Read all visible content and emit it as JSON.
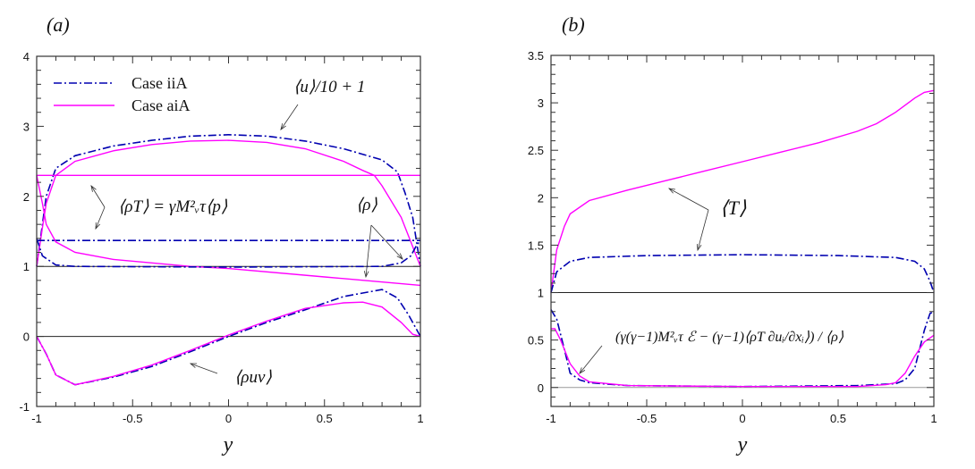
{
  "chart_data": [
    {
      "type": "line",
      "panel_label": "(a)",
      "xlabel": "y",
      "ylabel": "",
      "xlim": [
        -1,
        1
      ],
      "ylim": [
        -1,
        4
      ],
      "xticks": [
        "-1",
        "-0.5",
        "0",
        "0.5",
        "1"
      ],
      "yticks": [
        "-1",
        "0",
        "1",
        "2",
        "3",
        "4"
      ],
      "legend": {
        "placement": "top-left",
        "entries": [
          {
            "name": "Case iiA",
            "color": "#0000b0",
            "style": "dashdot"
          },
          {
            "name": "Case aiA",
            "color": "#ff00ff",
            "style": "solid"
          }
        ]
      },
      "annotations": [
        "⟨u⟩/10 + 1",
        "⟨ρT⟩ = γM²ᵥτ⟨p⟩",
        "⟨ρ⟩",
        "⟨ρuv⟩"
      ],
      "reference_lines": [
        1,
        0
      ],
      "series": [
        {
          "name": "⟨u⟩/10+1 Case iiA",
          "case": "iiA",
          "x": [
            -1,
            -0.97,
            -0.95,
            -0.9,
            -0.8,
            -0.6,
            -0.4,
            -0.2,
            0,
            0.2,
            0.4,
            0.6,
            0.8,
            0.88,
            0.92,
            0.96,
            1
          ],
          "y": [
            1,
            1.6,
            2.0,
            2.4,
            2.58,
            2.72,
            2.8,
            2.86,
            2.88,
            2.86,
            2.79,
            2.68,
            2.52,
            2.35,
            2.05,
            1.7,
            1.0
          ]
        },
        {
          "name": "⟨u⟩/10+1 Case aiA",
          "case": "aiA",
          "x": [
            -1,
            -0.97,
            -0.95,
            -0.9,
            -0.8,
            -0.6,
            -0.4,
            -0.2,
            0,
            0.2,
            0.4,
            0.6,
            0.7,
            0.76,
            0.8,
            0.9,
            0.95,
            1
          ],
          "y": [
            1,
            1.55,
            1.9,
            2.3,
            2.5,
            2.65,
            2.74,
            2.79,
            2.8,
            2.77,
            2.68,
            2.5,
            2.37,
            2.3,
            2.15,
            1.7,
            1.35,
            1.0
          ]
        },
        {
          "name": "⟨ρT⟩ Case aiA",
          "case": "aiA",
          "x": [
            -1,
            1
          ],
          "y": [
            2.3,
            2.3
          ]
        },
        {
          "name": "⟨ρT⟩ Case iiA",
          "case": "iiA",
          "x": [
            -1,
            1
          ],
          "y": [
            1.37,
            1.37
          ]
        },
        {
          "name": "⟨ρ⟩ Case aiA",
          "case": "aiA",
          "x": [
            -1,
            -0.97,
            -0.95,
            -0.9,
            -0.8,
            -0.6,
            -0.2,
            0,
            0.5,
            1
          ],
          "y": [
            2.3,
            1.9,
            1.6,
            1.35,
            1.2,
            1.1,
            1.0,
            0.97,
            0.85,
            0.73
          ]
        },
        {
          "name": "⟨ρ⟩ Case iiA",
          "case": "iiA",
          "x": [
            -1,
            -0.97,
            -0.9,
            -0.8,
            0,
            0.8,
            0.9,
            0.95,
            0.98,
            1
          ],
          "y": [
            1.4,
            1.15,
            1.02,
            1.0,
            0.99,
            1.0,
            1.05,
            1.15,
            1.3,
            1.37
          ]
        },
        {
          "name": "⟨ρuv⟩ Case iiA",
          "case": "iiA",
          "x": [
            -1,
            -0.95,
            -0.9,
            -0.8,
            -0.6,
            -0.4,
            -0.2,
            0,
            0.2,
            0.4,
            0.6,
            0.8,
            0.88,
            0.94,
            1
          ],
          "y": [
            0,
            -0.25,
            -0.55,
            -0.69,
            -0.58,
            -0.43,
            -0.22,
            0,
            0.2,
            0.38,
            0.57,
            0.67,
            0.55,
            0.3,
            0
          ]
        },
        {
          "name": "⟨ρuv⟩ Case aiA",
          "case": "aiA",
          "x": [
            -1,
            -0.95,
            -0.9,
            -0.8,
            -0.6,
            -0.4,
            -0.2,
            0,
            0.2,
            0.4,
            0.6,
            0.7,
            0.8,
            0.9,
            0.96,
            1
          ],
          "y": [
            0,
            -0.25,
            -0.55,
            -0.69,
            -0.57,
            -0.41,
            -0.2,
            0.02,
            0.22,
            0.4,
            0.48,
            0.49,
            0.42,
            0.2,
            0.03,
            0
          ]
        }
      ]
    },
    {
      "type": "line",
      "panel_label": "(b)",
      "xlabel": "y",
      "ylabel": "",
      "xlim": [
        -1,
        1
      ],
      "ylim": [
        -0.2,
        3.5
      ],
      "xticks": [
        "-1",
        "-0.5",
        "0",
        "0.5",
        "1"
      ],
      "yticks": [
        "0",
        "0.5",
        "1",
        "1.5",
        "2",
        "2.5",
        "3",
        "3.5"
      ],
      "annotations": [
        "⟨T⟩",
        "(γ(γ−1)M²ᵥτ ℰ − (γ−1)⟨ρT ∂uᵢ/∂xᵢ⟩) / ⟨ρ⟩"
      ],
      "reference_lines": [
        1,
        0
      ],
      "series": [
        {
          "name": "⟨T⟩ Case aiA",
          "case": "aiA",
          "x": [
            -1,
            -0.97,
            -0.93,
            -0.9,
            -0.8,
            -0.6,
            -0.4,
            -0.2,
            0,
            0.2,
            0.4,
            0.6,
            0.7,
            0.8,
            0.9,
            0.95,
            1
          ],
          "y": [
            1.0,
            1.45,
            1.7,
            1.83,
            1.97,
            2.08,
            2.18,
            2.28,
            2.38,
            2.48,
            2.58,
            2.7,
            2.78,
            2.9,
            3.05,
            3.11,
            3.13
          ]
        },
        {
          "name": "⟨T⟩ Case iiA",
          "case": "iiA",
          "x": [
            -1,
            -0.97,
            -0.9,
            -0.8,
            -0.5,
            0,
            0.5,
            0.8,
            0.9,
            0.95,
            0.98,
            1
          ],
          "y": [
            1.0,
            1.22,
            1.33,
            1.37,
            1.39,
            1.4,
            1.39,
            1.37,
            1.33,
            1.25,
            1.12,
            1.0
          ]
        },
        {
          "name": "dissipation Case iiA",
          "case": "iiA",
          "x": [
            -1,
            -0.97,
            -0.93,
            -0.9,
            -0.85,
            -0.8,
            -0.6,
            0,
            0.6,
            0.8,
            0.85,
            0.9,
            0.95,
            0.98,
            1
          ],
          "y": [
            0.82,
            0.72,
            0.4,
            0.15,
            0.08,
            0.05,
            0.02,
            0.01,
            0.02,
            0.04,
            0.08,
            0.2,
            0.6,
            0.78,
            0.8
          ]
        },
        {
          "name": "dissipation Case aiA",
          "case": "aiA",
          "x": [
            -1,
            -0.98,
            -0.95,
            -0.9,
            -0.85,
            -0.8,
            -0.6,
            0,
            0.6,
            0.75,
            0.8,
            0.85,
            0.9,
            0.95,
            1
          ],
          "y": [
            0.62,
            0.62,
            0.5,
            0.25,
            0.12,
            0.06,
            0.02,
            0.01,
            0.01,
            0.03,
            0.05,
            0.15,
            0.33,
            0.48,
            0.55
          ]
        }
      ]
    }
  ],
  "colors": {
    "iiA": "#0000b0",
    "aiA": "#ff00ff"
  }
}
